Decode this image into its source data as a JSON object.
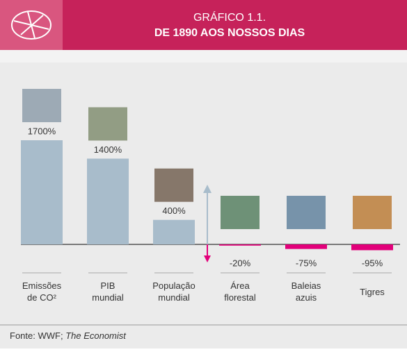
{
  "chart_data": {
    "type": "bar",
    "title": "GRÁFICO 1.1.",
    "subtitle": "DE 1890 AOS NOSSOS DIAS",
    "categories": [
      "Emissões de CO²",
      "PIB mundial",
      "População mundial",
      "Área florestal",
      "Baleias azuis",
      "Tigres"
    ],
    "values": [
      1700,
      1400,
      400,
      -20,
      -75,
      -95
    ],
    "value_labels": [
      "1700%",
      "1400%",
      "400%",
      "-20%",
      "-75%",
      "-95%"
    ],
    "colors": {
      "positive": "#a8bccb",
      "negative": "#e2007a"
    },
    "source": "Fonte: WWF;",
    "source_italic": "The Economist"
  }
}
